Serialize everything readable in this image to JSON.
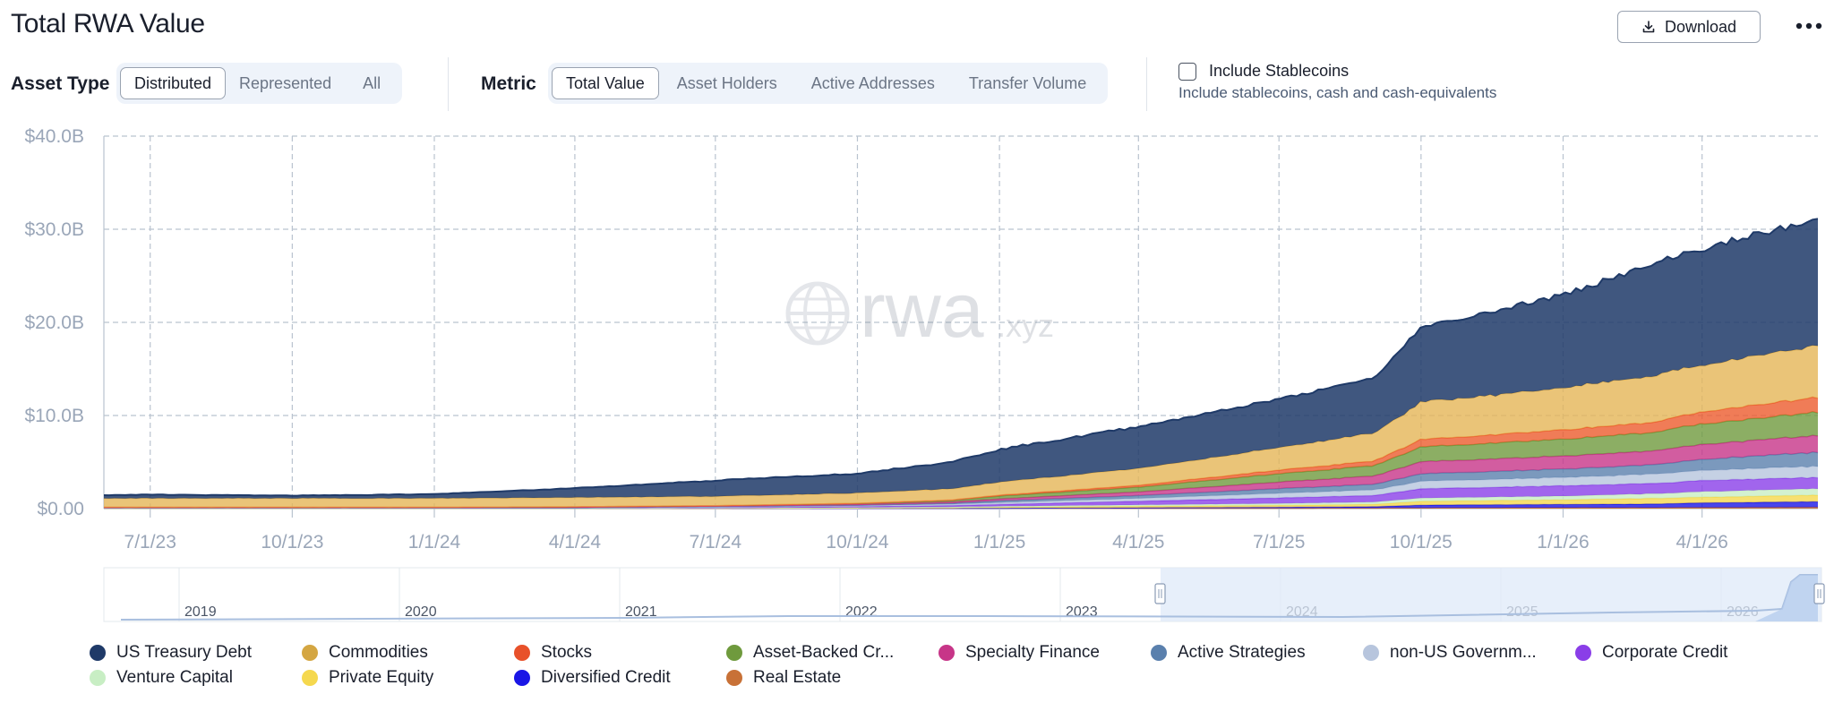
{
  "page_title": "Total RWA Value",
  "download_label": "Download",
  "filters": {
    "asset_type": {
      "label": "Asset Type",
      "options": [
        "Distributed",
        "Represented",
        "All"
      ],
      "selected": "Distributed"
    },
    "metric": {
      "label": "Metric",
      "options": [
        "Total Value",
        "Asset Holders",
        "Active Addresses",
        "Transfer Volume"
      ],
      "selected": "Total Value"
    },
    "stablecoins": {
      "label": "Include Stablecoins",
      "description": "Include stablecoins, cash and cash-equivalents",
      "checked": false
    }
  },
  "watermark": {
    "brand": "rwa",
    "suffix": ".xyz"
  },
  "chart_data": {
    "type": "area",
    "stacked": true,
    "y_ticks": [
      "$0.00",
      "$10.0B",
      "$20.0B",
      "$30.0B",
      "$40.0B"
    ],
    "ylim": [
      0,
      40
    ],
    "y_unit": "$B",
    "x_ticks": [
      "7/1/23",
      "10/1/23",
      "1/1/24",
      "4/1/24",
      "7/1/24",
      "10/1/24",
      "1/1/25",
      "4/1/25",
      "7/1/25",
      "10/1/25",
      "1/1/26",
      "4/1/26"
    ],
    "x": [
      "6/1/23",
      "7/1/23",
      "10/1/23",
      "1/1/24",
      "4/1/24",
      "7/1/24",
      "10/1/24",
      "12/1/24",
      "1/1/25",
      "4/1/25",
      "7/1/25",
      "9/1/25",
      "10/1/25",
      "1/1/26",
      "3/1/26",
      "4/1/26",
      "6/15/26"
    ],
    "grid": true,
    "series": [
      {
        "name": "Real Estate",
        "color": "#c87137",
        "values": [
          0.05,
          0.05,
          0.05,
          0.05,
          0.05,
          0.05,
          0.05,
          0.05,
          0.05,
          0.05,
          0.05,
          0.06,
          0.08,
          0.1,
          0.1,
          0.12,
          0.15
        ]
      },
      {
        "name": "Diversified Credit",
        "color": "#1a16e6",
        "values": [
          0,
          0,
          0,
          0,
          0,
          0,
          0,
          0,
          0,
          0.05,
          0.1,
          0.15,
          0.3,
          0.35,
          0.4,
          0.5,
          0.6
        ]
      },
      {
        "name": "Private Equity",
        "color": "#f5d84e",
        "values": [
          0,
          0,
          0,
          0,
          0,
          0,
          0.02,
          0.05,
          0.1,
          0.15,
          0.2,
          0.25,
          0.4,
          0.5,
          0.6,
          0.6,
          0.7
        ]
      },
      {
        "name": "Venture Capital",
        "color": "#c8eec4",
        "values": [
          0,
          0,
          0,
          0,
          0,
          0.02,
          0.05,
          0.08,
          0.1,
          0.15,
          0.2,
          0.25,
          0.35,
          0.4,
          0.5,
          0.6,
          0.7
        ]
      },
      {
        "name": "Corporate Credit",
        "color": "#8a3ee8",
        "values": [
          0.05,
          0.05,
          0.05,
          0.05,
          0.05,
          0.05,
          0.1,
          0.15,
          0.2,
          0.4,
          0.6,
          0.7,
          1.0,
          1.1,
          1.1,
          1.2,
          1.2
        ]
      },
      {
        "name": "non-US Government Debt",
        "color": "#b7c5dd",
        "values": [
          0,
          0,
          0,
          0,
          0,
          0.05,
          0.1,
          0.15,
          0.2,
          0.3,
          0.5,
          0.6,
          0.8,
          0.9,
          1.0,
          1.1,
          1.2
        ]
      },
      {
        "name": "Active Strategies",
        "color": "#5a80ad",
        "values": [
          0,
          0,
          0,
          0,
          0,
          0.05,
          0.05,
          0.1,
          0.2,
          0.3,
          0.5,
          0.6,
          0.8,
          0.9,
          1.0,
          1.2,
          1.5
        ]
      },
      {
        "name": "Specialty Finance",
        "color": "#c73588",
        "values": [
          0.02,
          0.02,
          0.02,
          0.02,
          0.05,
          0.05,
          0.1,
          0.15,
          0.2,
          0.4,
          0.7,
          0.9,
          1.3,
          1.4,
          1.5,
          1.6,
          1.8
        ]
      },
      {
        "name": "Asset-Backed Credit",
        "color": "#6f9a3d",
        "values": [
          0.03,
          0.03,
          0.03,
          0.03,
          0.05,
          0.05,
          0.1,
          0.15,
          0.3,
          0.5,
          0.9,
          1.1,
          1.6,
          1.8,
          2.0,
          2.2,
          2.5
        ]
      },
      {
        "name": "Stocks",
        "color": "#ec5b2d",
        "values": [
          0,
          0,
          0,
          0,
          0,
          0,
          0,
          0.05,
          0.1,
          0.2,
          0.4,
          0.5,
          0.8,
          1.0,
          1.1,
          1.3,
          1.6
        ]
      },
      {
        "name": "Commodities",
        "color": "#e5b556",
        "values": [
          0.95,
          0.95,
          0.95,
          0.95,
          1.0,
          1.0,
          1.1,
          1.2,
          1.4,
          1.8,
          2.4,
          3.0,
          4.0,
          4.5,
          5.0,
          5.0,
          5.5
        ]
      },
      {
        "name": "US Treasury Debt",
        "color": "#1f3a68",
        "values": [
          0.35,
          0.4,
          0.3,
          0.45,
          1.0,
          1.7,
          2.1,
          2.9,
          3.5,
          4.5,
          5.2,
          5.9,
          8.0,
          10.0,
          12.0,
          12.5,
          13.5
        ]
      }
    ]
  },
  "navigator": {
    "years": [
      "2019",
      "2020",
      "2021",
      "2022",
      "2023",
      "2024",
      "2025",
      "2026"
    ],
    "selection": {
      "start": "6/1/23",
      "end": "6/15/26"
    }
  },
  "legend": [
    {
      "label": "US Treasury Debt",
      "color": "#1f3a68"
    },
    {
      "label": "Commodities",
      "color": "#d4a642"
    },
    {
      "label": "Stocks",
      "color": "#e8512a"
    },
    {
      "label": "Asset-Backed Cr...",
      "color": "#6f9a3d"
    },
    {
      "label": "Specialty Finance",
      "color": "#c73588"
    },
    {
      "label": "Active Strategies",
      "color": "#5a80ad"
    },
    {
      "label": "non-US Governm...",
      "color": "#b7c5dd"
    },
    {
      "label": "Corporate Credit",
      "color": "#8a3ee8"
    },
    {
      "label": "Venture Capital",
      "color": "#c8eec4"
    },
    {
      "label": "Private Equity",
      "color": "#f5d84e"
    },
    {
      "label": "Diversified Credit",
      "color": "#1a16e6"
    },
    {
      "label": "Real Estate",
      "color": "#c87137"
    }
  ]
}
